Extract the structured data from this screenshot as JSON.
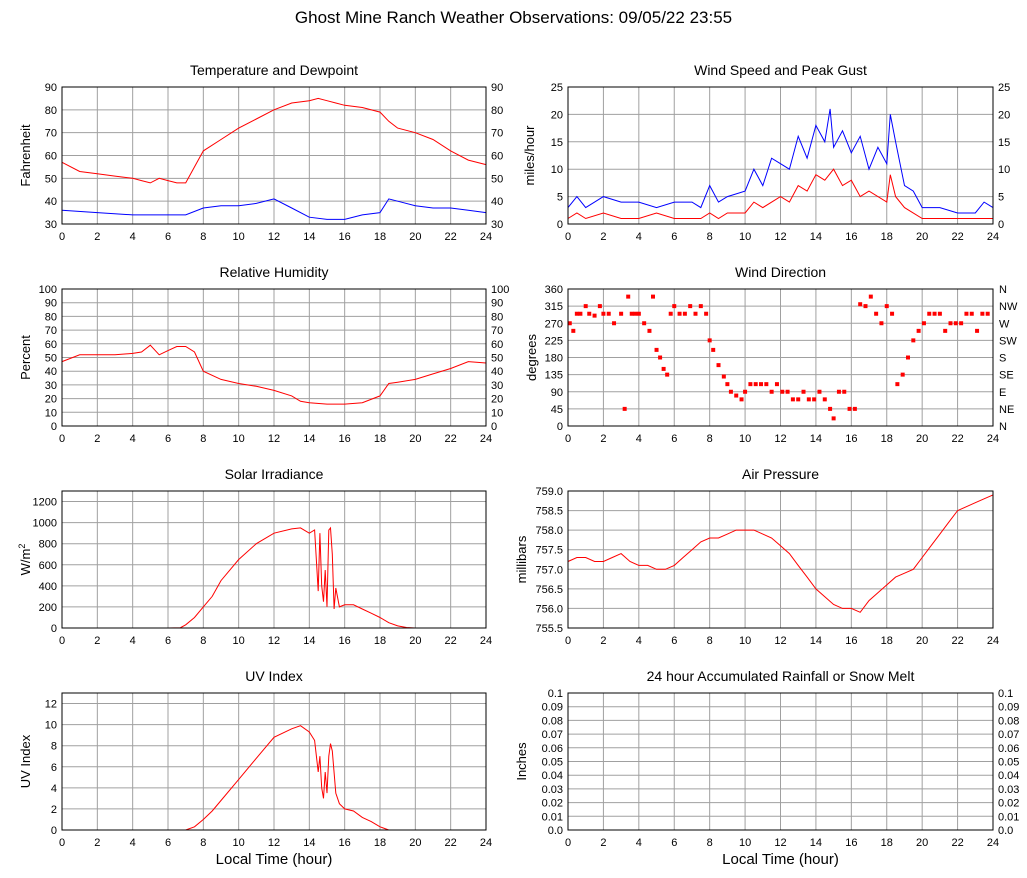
{
  "page": {
    "title": "Ghost Mine Ranch Weather Observations: 09/05/22 23:55"
  },
  "chart_data": [
    {
      "id": "temp",
      "type": "line",
      "title": "Temperature and Dewpoint",
      "xlabel": "",
      "ylabel": "Fahrenheit",
      "xlim": [
        0,
        24
      ],
      "ylim": [
        30,
        90
      ],
      "xticks": [
        0,
        2,
        4,
        6,
        8,
        10,
        12,
        14,
        16,
        18,
        20,
        22,
        24
      ],
      "yticks": [
        30,
        40,
        50,
        60,
        70,
        80,
        90
      ],
      "right_axis": true,
      "grid": true,
      "series": [
        {
          "color": "#ff0000",
          "x": [
            0,
            1,
            2,
            3,
            4,
            4.5,
            5,
            5.5,
            6,
            6.5,
            7,
            7.5,
            8,
            9,
            10,
            11,
            12,
            13,
            14,
            14.5,
            15,
            15.5,
            16,
            17,
            18,
            18.5,
            19,
            20,
            21,
            22,
            23,
            24
          ],
          "y": [
            57,
            53,
            52,
            51,
            50,
            49,
            48,
            50,
            49,
            48,
            48,
            55,
            62,
            67,
            72,
            76,
            80,
            83,
            84,
            85,
            84,
            83,
            82,
            81,
            79,
            75,
            72,
            70,
            67,
            62,
            58,
            56
          ]
        },
        {
          "color": "#0000ff",
          "x": [
            0,
            2,
            4,
            6,
            7,
            8,
            9,
            10,
            11,
            12,
            13,
            14,
            15,
            16,
            17,
            18,
            18.5,
            19,
            20,
            21,
            22,
            23,
            24
          ],
          "y": [
            36,
            35,
            34,
            34,
            34,
            37,
            38,
            38,
            39,
            41,
            37,
            33,
            32,
            32,
            34,
            35,
            41,
            40,
            38,
            37,
            37,
            36,
            35
          ]
        }
      ]
    },
    {
      "id": "wind",
      "type": "line",
      "title": "Wind Speed and Peak Gust",
      "xlabel": "",
      "ylabel": "miles/hour",
      "xlim": [
        0,
        24
      ],
      "ylim": [
        0,
        25
      ],
      "xticks": [
        0,
        2,
        4,
        6,
        8,
        10,
        12,
        14,
        16,
        18,
        20,
        22,
        24
      ],
      "yticks": [
        0,
        5,
        10,
        15,
        20,
        25
      ],
      "right_axis": true,
      "grid": true,
      "series": [
        {
          "color": "#0000ff",
          "x": [
            0,
            0.5,
            1,
            1.5,
            2,
            3,
            4,
            5,
            6,
            7,
            7.5,
            8,
            8.5,
            9,
            10,
            10.5,
            11,
            11.5,
            12,
            12.5,
            13,
            13.5,
            14,
            14.5,
            14.8,
            15,
            15.5,
            16,
            16.5,
            17,
            17.5,
            18,
            18.2,
            18.5,
            19,
            19.5,
            20,
            21,
            22,
            23,
            23.5,
            24
          ],
          "y": [
            3,
            5,
            3,
            4,
            5,
            4,
            4,
            3,
            4,
            4,
            3,
            7,
            4,
            5,
            6,
            10,
            7,
            12,
            11,
            10,
            16,
            12,
            18,
            15,
            21,
            14,
            17,
            13,
            16,
            10,
            14,
            11,
            20,
            15,
            7,
            6,
            3,
            3,
            2,
            2,
            4,
            3
          ]
        },
        {
          "color": "#ff0000",
          "x": [
            0,
            0.5,
            1,
            2,
            3,
            4,
            5,
            6,
            7,
            7.5,
            8,
            8.5,
            9,
            10,
            10.5,
            11,
            12,
            12.5,
            13,
            13.5,
            14,
            14.5,
            15,
            15.5,
            16,
            16.5,
            17,
            18,
            18.2,
            18.5,
            19,
            20,
            21,
            22,
            23,
            24
          ],
          "y": [
            1,
            2,
            1,
            2,
            1,
            1,
            2,
            1,
            1,
            1,
            2,
            1,
            2,
            2,
            4,
            3,
            5,
            4,
            7,
            6,
            9,
            8,
            10,
            7,
            8,
            5,
            6,
            4,
            9,
            5,
            3,
            1,
            1,
            1,
            1,
            1
          ]
        }
      ]
    },
    {
      "id": "rh",
      "type": "line",
      "title": "Relative Humidity",
      "xlabel": "",
      "ylabel": "Percent",
      "xlim": [
        0,
        24
      ],
      "ylim": [
        0,
        100
      ],
      "xticks": [
        0,
        2,
        4,
        6,
        8,
        10,
        12,
        14,
        16,
        18,
        20,
        22,
        24
      ],
      "yticks": [
        0,
        10,
        20,
        30,
        40,
        50,
        60,
        70,
        80,
        90,
        100
      ],
      "right_axis": true,
      "grid": true,
      "series": [
        {
          "color": "#ff0000",
          "x": [
            0,
            1,
            2,
            3,
            4,
            4.5,
            5,
            5.5,
            6,
            6.5,
            7,
            7.5,
            8,
            9,
            10,
            11,
            12,
            13,
            13.5,
            14,
            15,
            16,
            17,
            18,
            18.5,
            19,
            20,
            21,
            22,
            23,
            24
          ],
          "y": [
            47,
            52,
            52,
            52,
            53,
            54,
            59,
            52,
            55,
            58,
            58,
            54,
            40,
            34,
            31,
            29,
            26,
            22,
            18,
            17,
            16,
            16,
            17,
            22,
            31,
            32,
            34,
            38,
            42,
            47,
            46
          ]
        }
      ]
    },
    {
      "id": "wdir",
      "type": "scatter",
      "title": "Wind Direction",
      "xlabel": "",
      "ylabel": "degrees",
      "xlim": [
        0,
        24
      ],
      "ylim": [
        0,
        360
      ],
      "xticks": [
        0,
        2,
        4,
        6,
        8,
        10,
        12,
        14,
        16,
        18,
        20,
        22,
        24
      ],
      "yticks": [
        0,
        45,
        90,
        135,
        180,
        225,
        270,
        315,
        360
      ],
      "right_tick_labels": [
        "N",
        "NE",
        "E",
        "SE",
        "S",
        "SW",
        "W",
        "NW",
        "N"
      ],
      "grid": true,
      "series": [
        {
          "color": "#ff0000",
          "x": [
            0.1,
            0.3,
            0.5,
            0.7,
            1,
            1.2,
            1.5,
            1.8,
            2,
            2.3,
            2.6,
            3,
            3.2,
            3.4,
            3.6,
            3.8,
            4,
            4.3,
            4.6,
            4.8,
            5,
            5.2,
            5.4,
            5.6,
            5.8,
            6,
            6.3,
            6.6,
            6.9,
            7.2,
            7.5,
            7.8,
            8,
            8.2,
            8.5,
            8.8,
            9,
            9.2,
            9.5,
            9.8,
            10,
            10.3,
            10.6,
            10.9,
            11.2,
            11.5,
            11.8,
            12.1,
            12.4,
            12.7,
            13,
            13.3,
            13.6,
            13.9,
            14.2,
            14.5,
            14.8,
            15,
            15.3,
            15.6,
            15.9,
            16.2,
            16.5,
            16.8,
            17.1,
            17.4,
            17.7,
            18,
            18.3,
            18.6,
            18.9,
            19.2,
            19.5,
            19.8,
            20.1,
            20.4,
            20.7,
            21,
            21.3,
            21.6,
            21.9,
            22.2,
            22.5,
            22.8,
            23.1,
            23.4,
            23.7
          ],
          "y": [
            270,
            250,
            295,
            295,
            315,
            295,
            290,
            315,
            295,
            295,
            270,
            295,
            45,
            340,
            295,
            295,
            295,
            270,
            250,
            340,
            200,
            180,
            150,
            135,
            295,
            315,
            295,
            295,
            315,
            295,
            315,
            295,
            225,
            200,
            160,
            130,
            110,
            90,
            80,
            70,
            90,
            110,
            110,
            110,
            110,
            90,
            110,
            90,
            90,
            70,
            70,
            90,
            70,
            70,
            90,
            70,
            45,
            20,
            90,
            90,
            45,
            45,
            320,
            315,
            340,
            295,
            270,
            315,
            295,
            110,
            135,
            180,
            225,
            250,
            270,
            295,
            295,
            295,
            250,
            270,
            270,
            270,
            295,
            295,
            250,
            295,
            295
          ]
        }
      ]
    },
    {
      "id": "solar",
      "type": "line",
      "title": "Solar Irradiance",
      "xlabel": "",
      "ylabel": "W/m2",
      "xlim": [
        0,
        24
      ],
      "ylim": [
        0,
        1300
      ],
      "xticks": [
        0,
        2,
        4,
        6,
        8,
        10,
        12,
        14,
        16,
        18,
        20,
        22,
        24
      ],
      "yticks": [
        0,
        200,
        400,
        600,
        800,
        1000,
        1200
      ],
      "right_axis": false,
      "grid": true,
      "series": [
        {
          "color": "#ff0000",
          "x": [
            0,
            6,
            6.7,
            7,
            7.5,
            8,
            8.5,
            9,
            10,
            11,
            12,
            13,
            13.5,
            14,
            14.3,
            14.5,
            14.6,
            14.7,
            14.8,
            14.9,
            15,
            15.1,
            15.2,
            15.3,
            15.4,
            15.5,
            15.7,
            16,
            16.5,
            17,
            17.5,
            18,
            18.5,
            19,
            19.5,
            20,
            24
          ],
          "y": [
            0,
            0,
            3,
            30,
            100,
            200,
            300,
            450,
            650,
            800,
            900,
            940,
            950,
            900,
            930,
            350,
            900,
            400,
            250,
            550,
            200,
            930,
            950,
            700,
            180,
            380,
            200,
            220,
            220,
            180,
            140,
            100,
            50,
            20,
            5,
            0,
            0
          ]
        }
      ]
    },
    {
      "id": "pressure",
      "type": "line",
      "title": "Air Pressure",
      "xlabel": "",
      "ylabel": "millibars",
      "xlim": [
        0,
        24
      ],
      "ylim": [
        755.5,
        759.0
      ],
      "xticks": [
        0,
        2,
        4,
        6,
        8,
        10,
        12,
        14,
        16,
        18,
        20,
        22,
        24
      ],
      "yticks": [
        755.5,
        756.0,
        756.5,
        757.0,
        757.5,
        758.0,
        758.5,
        759.0
      ],
      "right_axis": false,
      "grid": true,
      "series": [
        {
          "color": "#ff0000",
          "x": [
            0,
            0.5,
            1,
            1.5,
            2,
            2.5,
            3,
            3.5,
            4,
            4.5,
            5,
            5.5,
            6,
            6.5,
            7,
            7.5,
            8,
            8.5,
            9,
            9.5,
            10,
            10.5,
            11,
            11.5,
            12,
            12.5,
            13,
            13.5,
            14,
            14.5,
            15,
            15.5,
            16,
            16.5,
            17,
            17.5,
            18,
            18.5,
            19,
            19.5,
            20,
            20.5,
            21,
            21.5,
            22,
            22.5,
            23,
            23.5,
            24
          ],
          "y": [
            757.2,
            757.3,
            757.3,
            757.2,
            757.2,
            757.3,
            757.4,
            757.2,
            757.1,
            757.1,
            757.0,
            757.0,
            757.1,
            757.3,
            757.5,
            757.7,
            757.8,
            757.8,
            757.9,
            758.0,
            758.0,
            758.0,
            757.9,
            757.8,
            757.6,
            757.4,
            757.1,
            756.8,
            756.5,
            756.3,
            756.1,
            756.0,
            756.0,
            755.9,
            756.2,
            756.4,
            756.6,
            756.8,
            756.9,
            757.0,
            757.3,
            757.6,
            757.9,
            758.2,
            758.5,
            758.6,
            758.7,
            758.8,
            758.9
          ]
        }
      ]
    },
    {
      "id": "uv",
      "type": "line",
      "title": "UV Index",
      "xlabel": "Local Time (hour)",
      "ylabel": "UV Index",
      "xlim": [
        0,
        24
      ],
      "ylim": [
        0,
        13
      ],
      "xticks": [
        0,
        2,
        4,
        6,
        8,
        10,
        12,
        14,
        16,
        18,
        20,
        22,
        24
      ],
      "yticks": [
        0,
        2,
        4,
        6,
        8,
        10,
        12
      ],
      "right_axis": false,
      "grid": true,
      "series": [
        {
          "color": "#ff0000",
          "x": [
            0,
            7,
            7.5,
            8,
            8.5,
            9,
            10,
            11,
            12,
            13,
            13.5,
            14,
            14.3,
            14.5,
            14.6,
            14.7,
            14.8,
            14.9,
            15,
            15.1,
            15.2,
            15.3,
            15.5,
            15.7,
            16,
            16.5,
            17,
            17.5,
            18,
            18.5,
            24
          ],
          "y": [
            0,
            0,
            0.3,
            1,
            1.8,
            2.8,
            4.8,
            6.8,
            8.8,
            9.6,
            9.9,
            9.3,
            8.5,
            5.5,
            7,
            4,
            3,
            5.5,
            3.5,
            7,
            8.2,
            7.5,
            3.5,
            2.5,
            2,
            1.8,
            1.2,
            0.8,
            0.3,
            0,
            0
          ]
        }
      ]
    },
    {
      "id": "rain",
      "type": "line",
      "title": "24 hour Accumulated Rainfall or Snow Melt",
      "xlabel": "Local Time (hour)",
      "ylabel": "Inches",
      "xlim": [
        0,
        24
      ],
      "ylim": [
        0,
        0.1
      ],
      "xticks": [
        0,
        2,
        4,
        6,
        8,
        10,
        12,
        14,
        16,
        18,
        20,
        22,
        24
      ],
      "yticks": [
        0,
        0.01,
        0.02,
        0.03,
        0.04,
        0.05,
        0.06,
        0.07,
        0.08,
        0.09,
        0.1
      ],
      "ytick_labels": [
        "0.0",
        "0.01",
        "0.02",
        "0.03",
        "0.04",
        "0.05",
        "0.06",
        "0.07",
        "0.08",
        "0.09",
        "0.1"
      ],
      "right_axis": true,
      "grid": true,
      "series": [
        {
          "color": "#ff0000",
          "x": [
            0,
            24
          ],
          "y": [
            0,
            0
          ]
        }
      ]
    }
  ]
}
